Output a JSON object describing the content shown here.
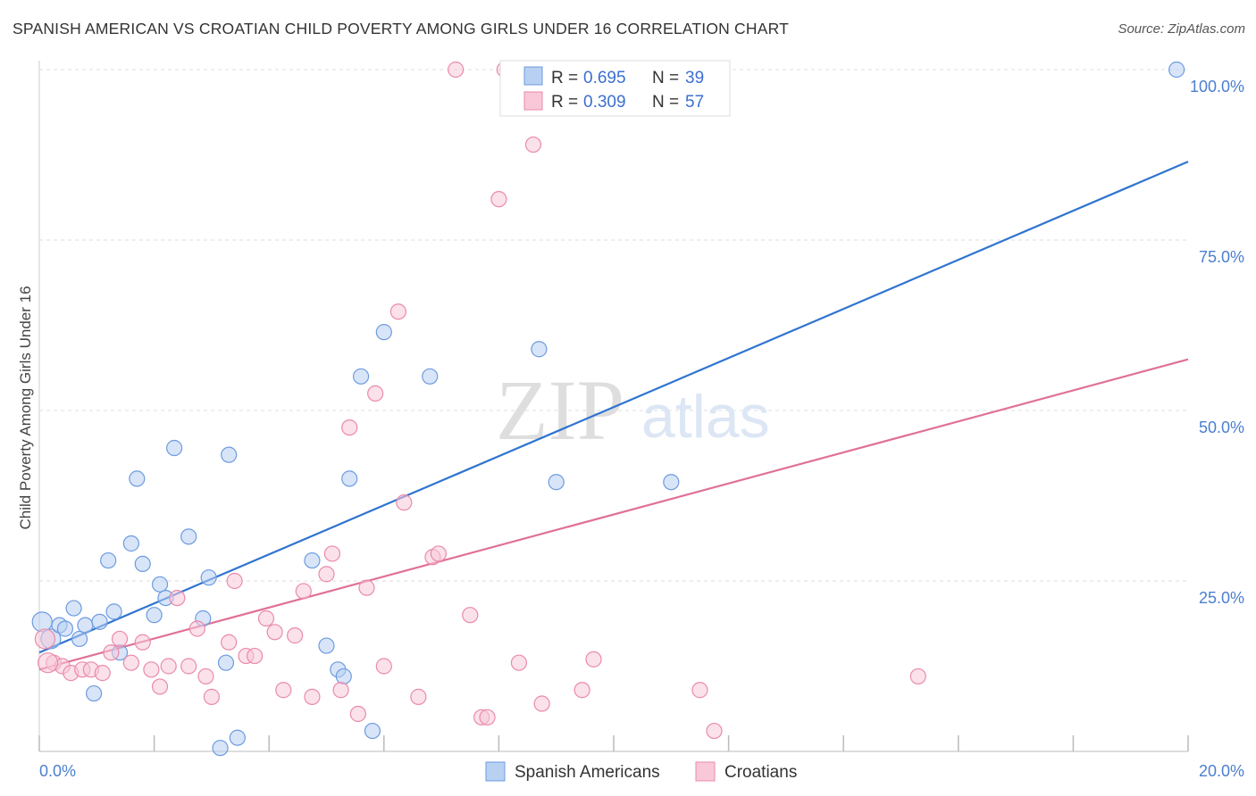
{
  "title": "SPANISH AMERICAN VS CROATIAN CHILD POVERTY AMONG GIRLS UNDER 16 CORRELATION CHART",
  "source": "Source: ZipAtlas.com",
  "watermark": {
    "zip": "ZIP",
    "atlas": "atlas"
  },
  "chart_data": {
    "type": "scatter",
    "ylabel": "Child Poverty Among Girls Under 16",
    "xlabel": "",
    "xlim": [
      0,
      20
    ],
    "ylim": [
      0,
      100
    ],
    "x_tick_labels": [
      "0.0%",
      "20.0%"
    ],
    "y_ticks": [
      25,
      50,
      75,
      100
    ],
    "y_tick_labels": [
      "25.0%",
      "50.0%",
      "75.0%",
      "100.0%"
    ],
    "grid": true,
    "legend_position": "top-center",
    "legend": [
      {
        "r_label": "R =",
        "r_value": "0.695",
        "n_label": "N =",
        "n_value": "39"
      },
      {
        "r_label": "R =",
        "r_value": "0.309",
        "n_label": "N =",
        "n_value": "57"
      }
    ],
    "series": [
      {
        "name": "Spanish Americans",
        "color": "#6d9be0",
        "fill": "#b8d0f2",
        "line_color": "#2f74d0",
        "trend": {
          "x": [
            0,
            20
          ],
          "y": [
            14.5,
            86.5
          ]
        },
        "points": [
          [
            0.05,
            19
          ],
          [
            0.2,
            16.5
          ],
          [
            0.35,
            18.5
          ],
          [
            0.45,
            18
          ],
          [
            0.6,
            21
          ],
          [
            0.7,
            16.5
          ],
          [
            0.8,
            18.5
          ],
          [
            0.95,
            8.5
          ],
          [
            1.05,
            19
          ],
          [
            1.2,
            28
          ],
          [
            1.3,
            20.5
          ],
          [
            1.4,
            14.5
          ],
          [
            1.6,
            30.5
          ],
          [
            1.7,
            40
          ],
          [
            1.8,
            27.5
          ],
          [
            2.0,
            20
          ],
          [
            2.1,
            24.5
          ],
          [
            2.2,
            22.5
          ],
          [
            2.35,
            44.5
          ],
          [
            2.6,
            31.5
          ],
          [
            2.85,
            19.5
          ],
          [
            2.95,
            25.5
          ],
          [
            3.15,
            0.5
          ],
          [
            3.25,
            13
          ],
          [
            3.3,
            43.5
          ],
          [
            3.45,
            2
          ],
          [
            4.75,
            28
          ],
          [
            5.0,
            15.5
          ],
          [
            5.2,
            12
          ],
          [
            5.3,
            11
          ],
          [
            5.4,
            40
          ],
          [
            5.6,
            55
          ],
          [
            5.8,
            3
          ],
          [
            6.0,
            61.5
          ],
          [
            6.8,
            55
          ],
          [
            8.7,
            59
          ],
          [
            9.0,
            39.5
          ],
          [
            11.0,
            39.5
          ],
          [
            19.8,
            100
          ]
        ]
      },
      {
        "name": "Croatians",
        "color": "#ea8aaa",
        "fill": "#f8c8d8",
        "line_color": "#e07098",
        "trend": {
          "x": [
            0,
            20
          ],
          "y": [
            12,
            57.5
          ]
        },
        "points": [
          [
            0.1,
            16.5
          ],
          [
            0.25,
            13
          ],
          [
            0.4,
            12.5
          ],
          [
            0.55,
            11.5
          ],
          [
            0.75,
            12
          ],
          [
            0.9,
            12
          ],
          [
            1.1,
            11.5
          ],
          [
            1.25,
            14.5
          ],
          [
            1.4,
            16.5
          ],
          [
            1.6,
            13
          ],
          [
            1.8,
            16
          ],
          [
            1.95,
            12
          ],
          [
            2.1,
            9.5
          ],
          [
            2.25,
            12.5
          ],
          [
            2.4,
            22.5
          ],
          [
            2.6,
            12.5
          ],
          [
            2.75,
            18
          ],
          [
            2.9,
            11
          ],
          [
            3.0,
            8
          ],
          [
            3.3,
            16
          ],
          [
            3.4,
            25
          ],
          [
            3.6,
            14
          ],
          [
            3.75,
            14
          ],
          [
            3.95,
            19.5
          ],
          [
            4.1,
            17.5
          ],
          [
            4.25,
            9
          ],
          [
            4.45,
            17
          ],
          [
            4.6,
            23.5
          ],
          [
            4.75,
            8
          ],
          [
            5.0,
            26
          ],
          [
            5.1,
            29
          ],
          [
            5.25,
            9
          ],
          [
            5.4,
            47.5
          ],
          [
            5.55,
            5.5
          ],
          [
            5.7,
            24
          ],
          [
            5.85,
            52.5
          ],
          [
            6.0,
            12.5
          ],
          [
            6.25,
            64.5
          ],
          [
            6.35,
            36.5
          ],
          [
            6.6,
            8
          ],
          [
            6.85,
            28.5
          ],
          [
            6.95,
            29
          ],
          [
            7.25,
            100
          ],
          [
            7.5,
            20
          ],
          [
            7.7,
            5
          ],
          [
            7.8,
            5
          ],
          [
            8.0,
            81
          ],
          [
            8.1,
            100
          ],
          [
            8.35,
            13
          ],
          [
            8.6,
            89
          ],
          [
            8.75,
            7
          ],
          [
            9.45,
            9
          ],
          [
            9.65,
            13.5
          ],
          [
            11.5,
            9
          ],
          [
            11.75,
            3
          ],
          [
            15.3,
            11
          ],
          [
            0.15,
            13
          ]
        ]
      }
    ]
  }
}
